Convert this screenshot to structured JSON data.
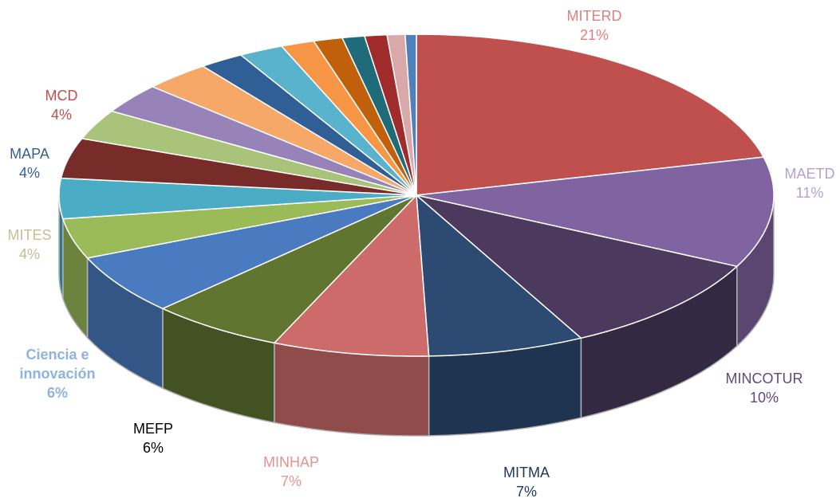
{
  "chart_data": {
    "type": "pie",
    "categories": [
      "MITERD",
      "MAETD",
      "MINCOTUR",
      "MITMA",
      "MINHAP",
      "MEFP",
      "Ciencia e innovación",
      "MITES",
      "MAPA",
      "MCD",
      null,
      null,
      null,
      null,
      null,
      null,
      null,
      null,
      null,
      null,
      null
    ],
    "values": [
      21,
      11,
      10,
      7,
      7,
      6,
      6,
      4,
      4,
      4,
      3,
      3,
      3,
      2,
      2,
      1.5,
      1.3,
      1,
      1,
      0.8,
      0.5
    ],
    "value_labels": [
      "21%",
      "11%",
      "10%",
      "7%",
      "7%",
      "6%",
      "6%",
      "4%",
      "4%",
      "4%",
      null,
      null,
      null,
      null,
      null,
      null,
      null,
      null,
      null,
      null,
      null
    ],
    "colors": [
      "#c0504d",
      "#8064a2",
      "#4b3a5e",
      "#2c4a72",
      "#cd6b6b",
      "#5f7530",
      "#4a7bc0",
      "#9bbb59",
      "#4bacc6",
      "#772c2a",
      "#a9c47a",
      "#9883b8",
      "#f5a868",
      "#2f5f94",
      "#5ab3cc",
      "#f79646",
      "#c0600a",
      "#1f6b7a",
      "#a02b2b",
      "#d9a9a9",
      "#4f81bd"
    ],
    "label_colors": [
      "#e08080",
      "#b4a0d0",
      "#604a7b",
      "#1f3864",
      "#e6928f",
      "#000000",
      "#8db3e2",
      "#c4bd97",
      "#366092",
      "#c0504d",
      null,
      null,
      null,
      null,
      null,
      null,
      null,
      null,
      null,
      null,
      null
    ]
  }
}
